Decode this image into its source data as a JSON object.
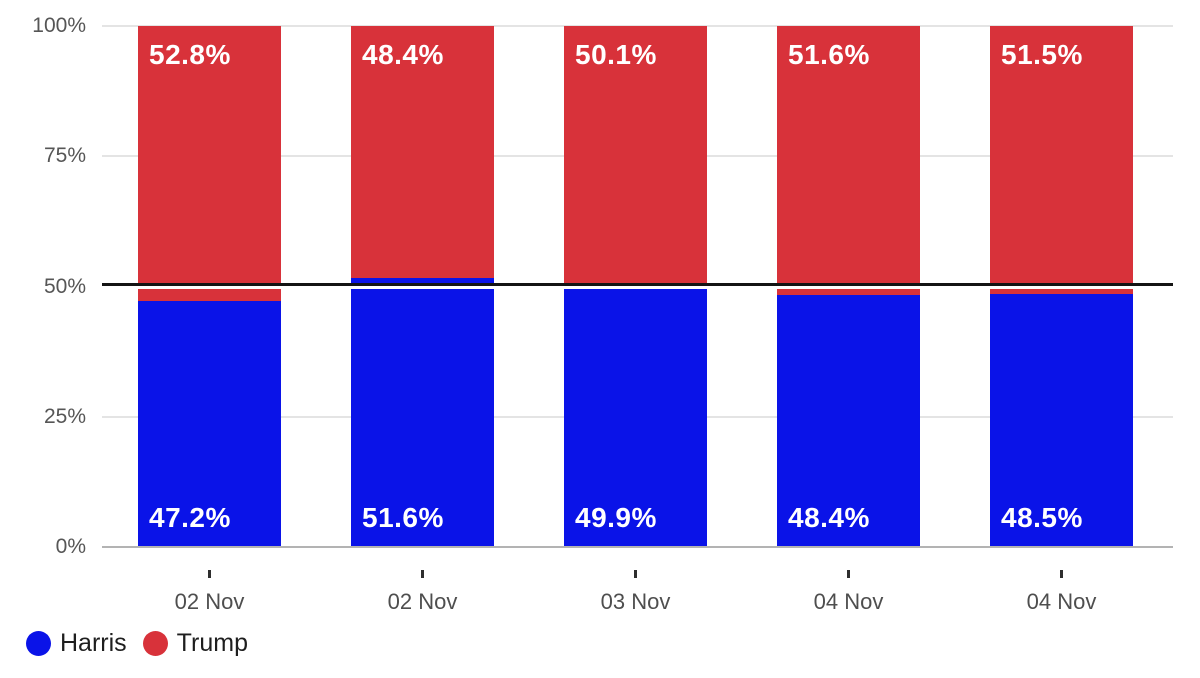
{
  "chart_data": {
    "type": "bar",
    "stacked": true,
    "categories": [
      "02 Nov",
      "02 Nov",
      "03 Nov",
      "04 Nov",
      "04 Nov"
    ],
    "series": [
      {
        "name": "Harris",
        "color": "#0a13e8",
        "values": [
          47.2,
          51.6,
          49.9,
          48.4,
          48.5
        ]
      },
      {
        "name": "Trump",
        "color": "#d8323a",
        "values": [
          52.8,
          48.4,
          50.1,
          51.6,
          51.5
        ]
      }
    ],
    "value_labels": {
      "Harris": [
        "47.2%",
        "51.6%",
        "49.9%",
        "48.4%",
        "48.5%"
      ],
      "Trump": [
        "52.8%",
        "48.4%",
        "50.1%",
        "51.6%",
        "51.5%"
      ]
    },
    "ylim": [
      0,
      100
    ],
    "yticks": [
      {
        "value": 0,
        "label": "0%"
      },
      {
        "value": 25,
        "label": "25%"
      },
      {
        "value": 50,
        "label": "50%"
      },
      {
        "value": 75,
        "label": "75%"
      },
      {
        "value": 100,
        "label": "100%"
      }
    ],
    "majority_line_value": 50,
    "grid": true,
    "legend_position": "bottom-left"
  },
  "legend": {
    "items": [
      {
        "label": "Harris",
        "color": "#0a13e8"
      },
      {
        "label": "Trump",
        "color": "#d8323a"
      }
    ]
  },
  "colors": {
    "harris_blue": "#0a13e8",
    "trump_red": "#d8323a",
    "majority_line": "#141414",
    "majority_line_casing": "#ffffff",
    "gridline": "#e4e4e4",
    "axis_line": "#b3b3b3",
    "axis_text": "#565656",
    "category_text": "#4e4e4e",
    "value_label_text": "#ffffff",
    "legend_text": "#1e1e1e"
  }
}
